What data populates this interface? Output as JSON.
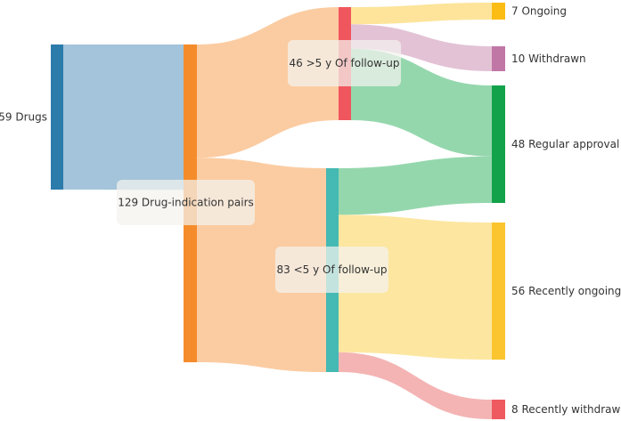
{
  "chart_data": {
    "type": "sankey",
    "nodes": [
      {
        "id": "drugs",
        "label": "59 Drugs",
        "value": 59,
        "color": "#2b7bab"
      },
      {
        "id": "pairs",
        "label": "129 Drug-indication pairs",
        "value": 129,
        "color": "#f58c2b"
      },
      {
        "id": "gt5",
        "label": "46 >5 y Of follow-up",
        "value": 46,
        "color": "#f0565e"
      },
      {
        "id": "lt5",
        "label": "83 <5 y Of follow-up",
        "value": 83,
        "color": "#45b9b3"
      },
      {
        "id": "ongoing",
        "label": "7 Ongoing",
        "value": 7,
        "color": "#fbbd14"
      },
      {
        "id": "withdrawn",
        "label": "10 Withdrawn",
        "value": 10,
        "color": "#c177a6"
      },
      {
        "id": "regular",
        "label": "48 Regular approval",
        "value": 48,
        "color": "#12a34a"
      },
      {
        "id": "recent_ongoing",
        "label": "56 Recently ongoing",
        "value": 56,
        "color": "#fbc52f"
      },
      {
        "id": "recent_withdrawn",
        "label": "8 Recently withdrawn",
        "value": 8,
        "color": "#ee5a5f"
      }
    ],
    "links": [
      {
        "source": "drugs",
        "target": "pairs",
        "value": 59,
        "color": "#a3c4da"
      },
      {
        "source": "pairs",
        "target": "gt5",
        "value": 46,
        "color": "#fbcca2"
      },
      {
        "source": "pairs",
        "target": "lt5",
        "value": 83,
        "color": "#fbcca2"
      },
      {
        "source": "gt5",
        "target": "ongoing",
        "value": 7,
        "color": "#fde49a"
      },
      {
        "source": "gt5",
        "target": "withdrawn",
        "value": 10,
        "color": "#e3c2d6"
      },
      {
        "source": "gt5",
        "target": "regular",
        "value": 29,
        "color": "#95d7ad"
      },
      {
        "source": "lt5",
        "target": "regular",
        "value": 19,
        "color": "#95d7ad"
      },
      {
        "source": "lt5",
        "target": "recent_ongoing",
        "value": 56,
        "color": "#fde6a0"
      },
      {
        "source": "lt5",
        "target": "recent_withdrawn",
        "value": 8,
        "color": "#f4b4b4"
      }
    ]
  }
}
